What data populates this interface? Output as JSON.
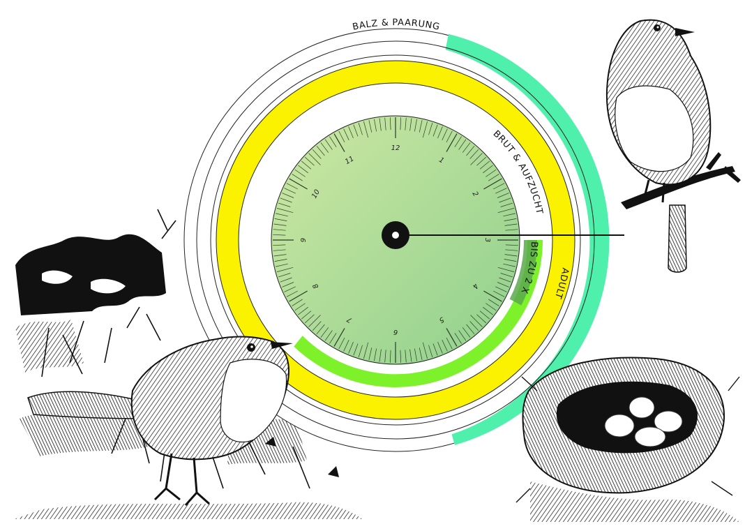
{
  "colors": {
    "balz": "#4ef0ac",
    "brut": "#fbf200",
    "adult": "#7df22b",
    "clutch": "#5aa94c",
    "dial_light": "#cde8a3",
    "dial_dark": "#8fd08d",
    "ink": "#111111"
  },
  "rings": {
    "balz": {
      "label": "BALZ & PAARUNG"
    },
    "brut": {
      "label": "BRUT & AUFZUCHT"
    },
    "adult": {
      "label": "ADULT"
    },
    "clutch": {
      "label": "BIS ZU 2 X"
    }
  },
  "dial": {
    "hours": [
      "12",
      "1",
      "2",
      "3",
      "4",
      "5",
      "6",
      "7",
      "8",
      "9",
      "10",
      "11"
    ]
  },
  "illustrations": [
    "robin-perched",
    "robin-standing",
    "bird-nest-eggs",
    "bushes"
  ]
}
